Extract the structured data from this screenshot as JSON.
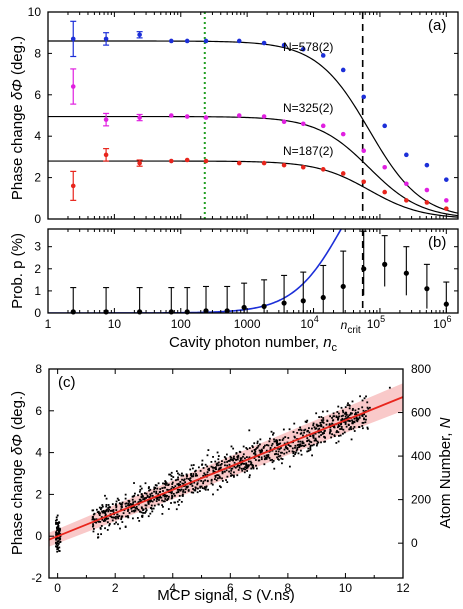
{
  "chart_data": [
    {
      "panel_label": "(a)",
      "type": "scatter",
      "xscale": "log",
      "xlim": [
        1,
        1500000
      ],
      "ylim": [
        0,
        10
      ],
      "ylabel_main": "Phase change ",
      "ylabel_sym": "δΦ",
      "ylabel_unit": " (deg.)",
      "y_ticks": [
        "0",
        "2",
        "4",
        "6",
        "8",
        "10"
      ],
      "vline_dotted_x": 230,
      "vline_dashed_x": 55000,
      "colors": {
        "blue": "#1c2fd8",
        "magenta": "#e020e0",
        "red": "#e8251c",
        "fit": "#000000",
        "green": "#22a022"
      },
      "series": [
        {
          "name": "N=578(2)",
          "color": "#1c2fd8",
          "plateau": 8.6,
          "x": [
            2.4,
            7.5,
            24,
            72,
            125,
            240,
            760,
            1800,
            3600,
            7000,
            14000,
            28000,
            57000,
            118000,
            250000,
            510000,
            1000000
          ],
          "y": [
            8.7,
            8.7,
            8.9,
            8.6,
            8.6,
            8.6,
            8.6,
            8.5,
            8.4,
            8.2,
            7.9,
            7.2,
            5.9,
            4.5,
            3.1,
            2.6,
            1.9
          ],
          "err": [
            0.85,
            0.3,
            0.15,
            0.1,
            0.1,
            0.1,
            0.1,
            0.1,
            0.1,
            0.1,
            0.1,
            0.1,
            0.1,
            0.1,
            0.1,
            0.1,
            0.1
          ]
        },
        {
          "name": "N=325(2)",
          "color": "#e020e0",
          "plateau": 4.95,
          "x": [
            2.4,
            7.5,
            24,
            72,
            125,
            240,
            760,
            1800,
            3600,
            7000,
            14000,
            28000,
            57000,
            118000,
            250000,
            510000,
            1000000
          ],
          "y": [
            6.4,
            4.8,
            4.9,
            5.0,
            4.95,
            4.9,
            5.0,
            4.95,
            4.7,
            4.6,
            4.5,
            4.1,
            3.3,
            2.5,
            1.7,
            1.4,
            0.9
          ],
          "err": [
            0.85,
            0.3,
            0.15,
            0.1,
            0.1,
            0.1,
            0.1,
            0.1,
            0.1,
            0.1,
            0.1,
            0.1,
            0.1,
            0.1,
            0.1,
            0.1,
            0.1
          ]
        },
        {
          "name": "N=187(2)",
          "color": "#e8251c",
          "plateau": 2.8,
          "x": [
            2.4,
            7.5,
            24,
            72,
            125,
            240,
            760,
            1800,
            3600,
            7000,
            14000,
            28000,
            57000,
            118000,
            250000,
            510000,
            1000000
          ],
          "y": [
            1.6,
            3.1,
            2.7,
            2.8,
            2.85,
            2.8,
            2.7,
            2.7,
            2.6,
            2.5,
            2.4,
            2.2,
            1.8,
            1.3,
            0.9,
            0.8,
            0.5
          ],
          "err": [
            0.7,
            0.3,
            0.15,
            0.1,
            0.1,
            0.1,
            0.1,
            0.1,
            0.1,
            0.1,
            0.1,
            0.1,
            0.1,
            0.1,
            0.1,
            0.1,
            0.1
          ]
        }
      ]
    },
    {
      "panel_label": "(b)",
      "type": "scatter",
      "xscale": "log",
      "xlim": [
        1,
        1500000
      ],
      "ylim": [
        0,
        3.8
      ],
      "ylabel": "Prob. p (%)",
      "xlabel_main": "Cavity photon number, ",
      "xlabel_sym": "n",
      "xlabel_sub": "c",
      "crit_main": "n",
      "crit_sub": "crit",
      "y_ticks": [
        "0",
        "1",
        "2",
        "3"
      ],
      "x_ticks": [
        "1",
        "10",
        "100",
        "1000",
        "10",
        "10",
        "10"
      ],
      "x_ticks_exp": [
        "",
        "",
        "",
        "",
        "4",
        "5",
        "6"
      ],
      "points": {
        "x": [
          2.4,
          7.5,
          24,
          72,
          125,
          240,
          500,
          900,
          1800,
          3600,
          7000,
          14000,
          28000,
          57000,
          118000,
          250000,
          510000,
          1000000
        ],
        "y": [
          0.05,
          0.05,
          0.05,
          0.05,
          0.05,
          0.1,
          0.1,
          0.25,
          0.3,
          0.45,
          0.55,
          0.7,
          1.2,
          2.0,
          2.2,
          1.8,
          1.1,
          0.4
        ],
        "err_low": [
          0.05,
          0.05,
          0.05,
          0.05,
          0.05,
          0.1,
          0.1,
          0.25,
          0.3,
          0.45,
          0.55,
          0.7,
          1.2,
          1.2,
          1.0,
          1.0,
          0.9,
          0.4
        ],
        "err_high": [
          1.1,
          1.1,
          1.1,
          1.1,
          1.1,
          1.1,
          1.1,
          1.1,
          1.2,
          1.25,
          1.3,
          1.45,
          1.6,
          1.7,
          1.3,
          1.2,
          1.1,
          1.0
        ]
      },
      "curve": "blue rising curve"
    },
    {
      "panel_label": "(c)",
      "type": "scatter",
      "xlim": [
        -0.3,
        12
      ],
      "ylim": [
        -2,
        8
      ],
      "y2lim": [
        -160,
        800
      ],
      "xlabel_main": "MCP signal, ",
      "xlabel_sym": "S",
      "xlabel_unit": " (V.ns)",
      "ylabel_main": "Phase change ",
      "ylabel_sym": "δΦ",
      "ylabel_unit": " (deg.)",
      "y2label_main": "Atom Number, ",
      "y2label_sym": "N",
      "x_ticks": [
        "0",
        "2",
        "4",
        "6",
        "8",
        "10",
        "12"
      ],
      "y_ticks": [
        "-2",
        "0",
        "2",
        "4",
        "6",
        "8"
      ],
      "y2_ticks": [
        "0",
        "200",
        "400",
        "600",
        "800"
      ],
      "fit": {
        "slope": 0.555,
        "intercept": 0.0,
        "band": 0.55
      },
      "scatter_description": "about 1200 points spread around the fit line, plus a cluster near S=0"
    }
  ]
}
